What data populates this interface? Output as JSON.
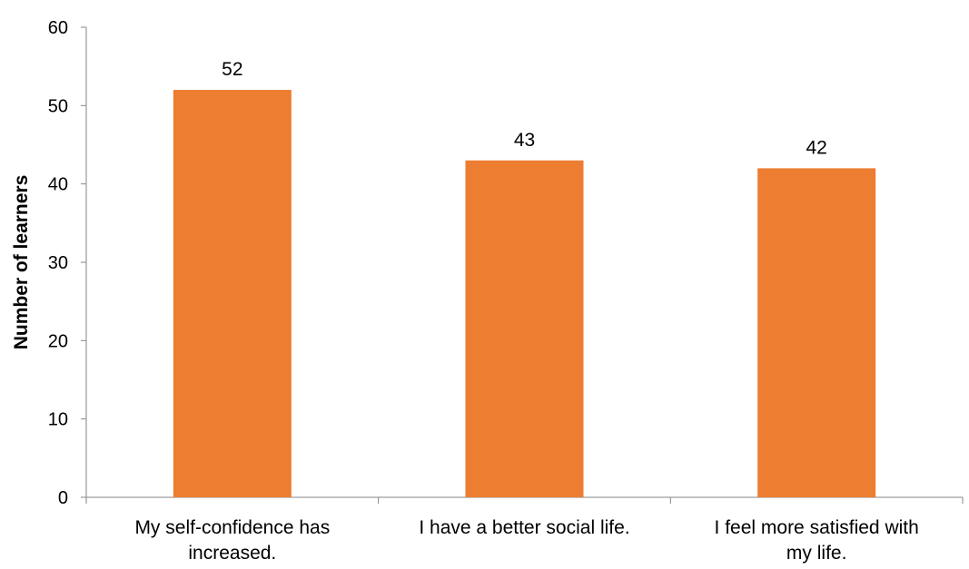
{
  "chart_data": {
    "type": "bar",
    "title": "",
    "xlabel": "",
    "ylabel": "Number of learners",
    "categories": [
      [
        "My self-confidence has",
        "increased."
      ],
      [
        "I have a better social life."
      ],
      [
        "I feel more satisfied with",
        "my life."
      ]
    ],
    "values": [
      52,
      43,
      42
    ],
    "ylim": [
      0,
      60
    ],
    "yticks": [
      0,
      10,
      20,
      30,
      40,
      50,
      60
    ],
    "grid": false,
    "legend": "none",
    "bar_color": "#ED7D31",
    "axis_color": "#868686"
  }
}
